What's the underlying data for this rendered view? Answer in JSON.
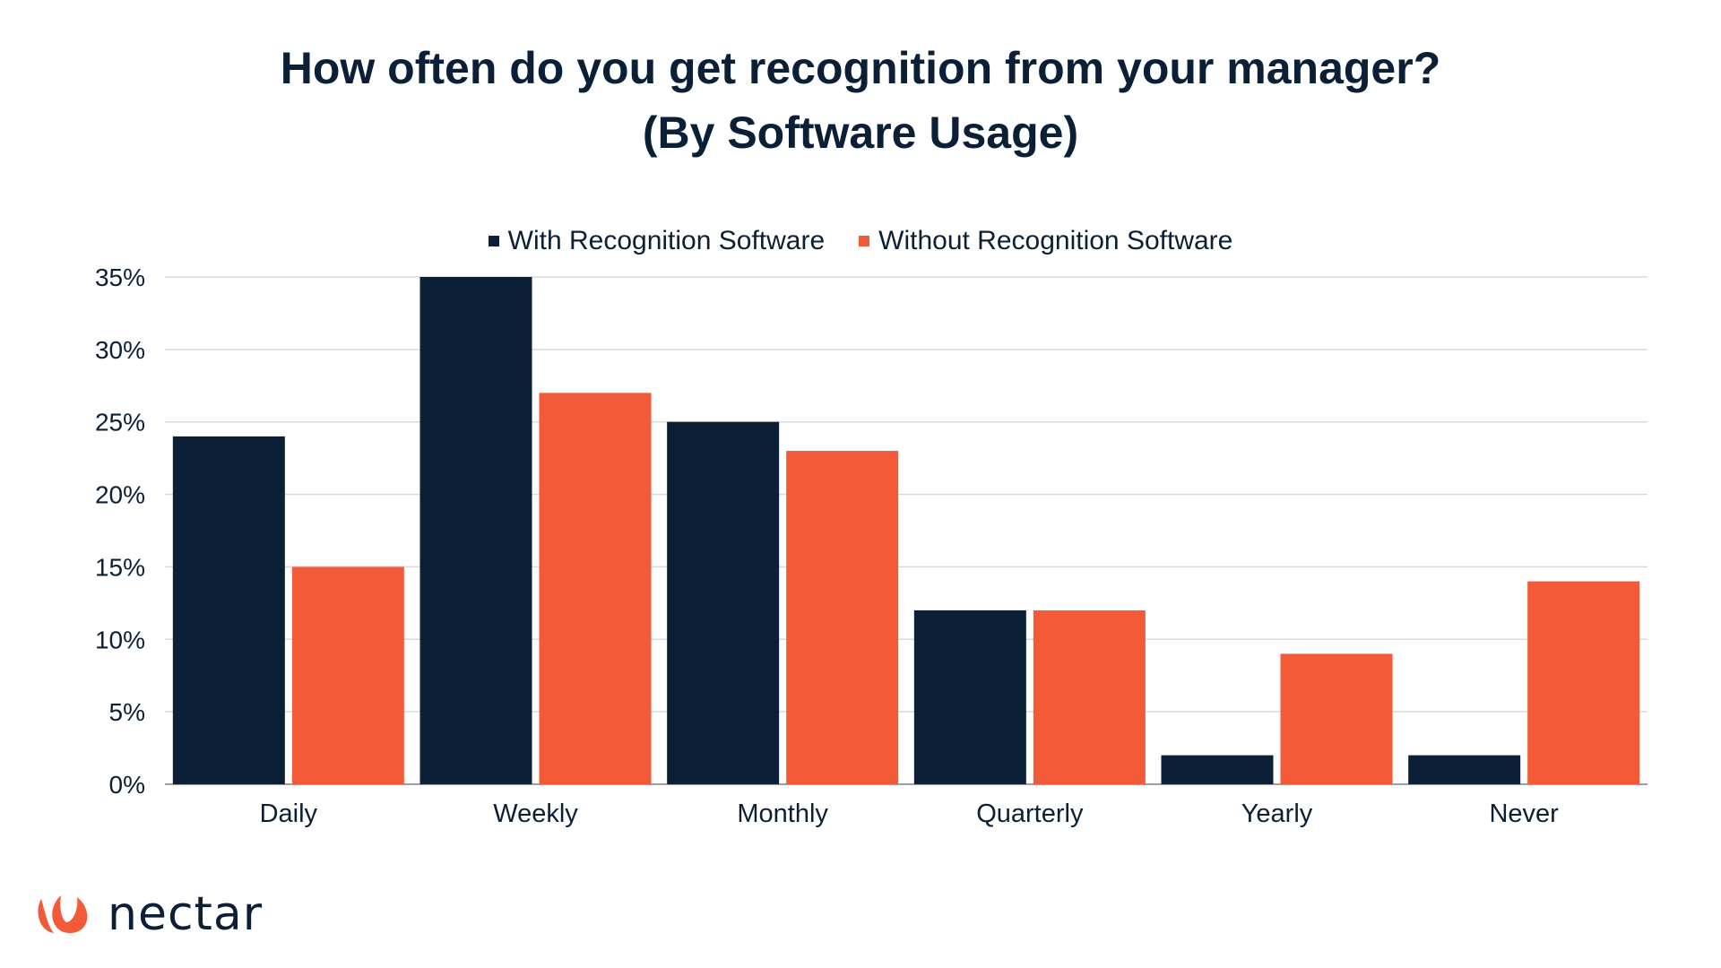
{
  "title_line1": "How often do you get recognition from your manager?",
  "title_line2": "(By Software Usage)",
  "logo": {
    "text": "nectar",
    "icon": "petal-logo-icon",
    "color": "#f25a38"
  },
  "chart_data": {
    "type": "bar",
    "title": "How often do you get recognition from your manager? (By Software Usage)",
    "categories": [
      "Daily",
      "Weekly",
      "Monthly",
      "Quarterly",
      "Yearly",
      "Never"
    ],
    "series": [
      {
        "name": "With Recognition Software",
        "color": "#0b1f36",
        "values": [
          24,
          35,
          25,
          12,
          2,
          2
        ]
      },
      {
        "name": "Without Recognition Software",
        "color": "#f25a38",
        "values": [
          15,
          27,
          23,
          12,
          9,
          14
        ]
      }
    ],
    "ylim": [
      0,
      35
    ],
    "yticks": [
      0,
      5,
      10,
      15,
      20,
      25,
      30,
      35
    ],
    "ytick_labels": [
      "0%",
      "5%",
      "10%",
      "15%",
      "20%",
      "25%",
      "30%",
      "35%"
    ],
    "grid": true,
    "legend_position": "top-center"
  }
}
